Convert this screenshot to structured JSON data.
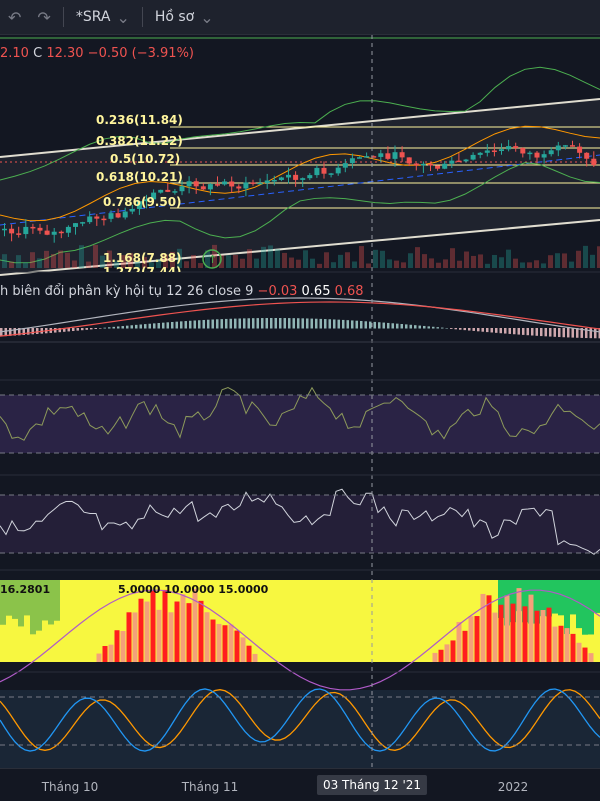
{
  "toolbar": {
    "undo_icon": "undo-icon",
    "redo_icon": "redo-icon",
    "symbol": "*SRA",
    "profile": "Hồ sơ"
  },
  "ohlc": {
    "low": "2.10",
    "close_label": "C",
    "close": "12.30",
    "change": "−0.50",
    "change_pct": "(−3.91%)"
  },
  "fib_levels": [
    {
      "ratio": "0.236",
      "price": "11.84",
      "text": "0.236(11.84)"
    },
    {
      "ratio": "0.382",
      "price": "11.22",
      "text": "0.382(11.22)"
    },
    {
      "ratio": "0.5",
      "price": "10.72",
      "text": "0.5(10.72)"
    },
    {
      "ratio": "0.618",
      "price": "10.21",
      "text": "0.618(10.21)"
    },
    {
      "ratio": "0.786",
      "price": "9.50",
      "text": "0.786(9.50)"
    },
    {
      "ratio": "1.168",
      "price": "7.88",
      "text": "1.168(7.88)"
    },
    {
      "ratio": "1.272",
      "price": "7.44",
      "text": "1.272(7.44)"
    }
  ],
  "macd": {
    "name": "h biên đổi phân kỳ hội tụ",
    "params": "12 26 close 9",
    "hist": "−0.03",
    "macd": "0.65",
    "signal": "0.68"
  },
  "ribbon": {
    "values": "16.2801",
    "periods": "5.0000  10.0000  15.0000"
  },
  "time_axis": {
    "ticks": [
      "Tháng 10",
      "Tháng 11",
      "2022"
    ],
    "crosshair": "03 Tháng 12 '21"
  },
  "colors": {
    "background": "#131722",
    "up": "#26a69a",
    "down": "#ef5350",
    "fib": "#fff59d",
    "channel": "#e0ddd0",
    "rsi_band": "#2a2345",
    "stoch_band": "#1e2f45"
  }
}
